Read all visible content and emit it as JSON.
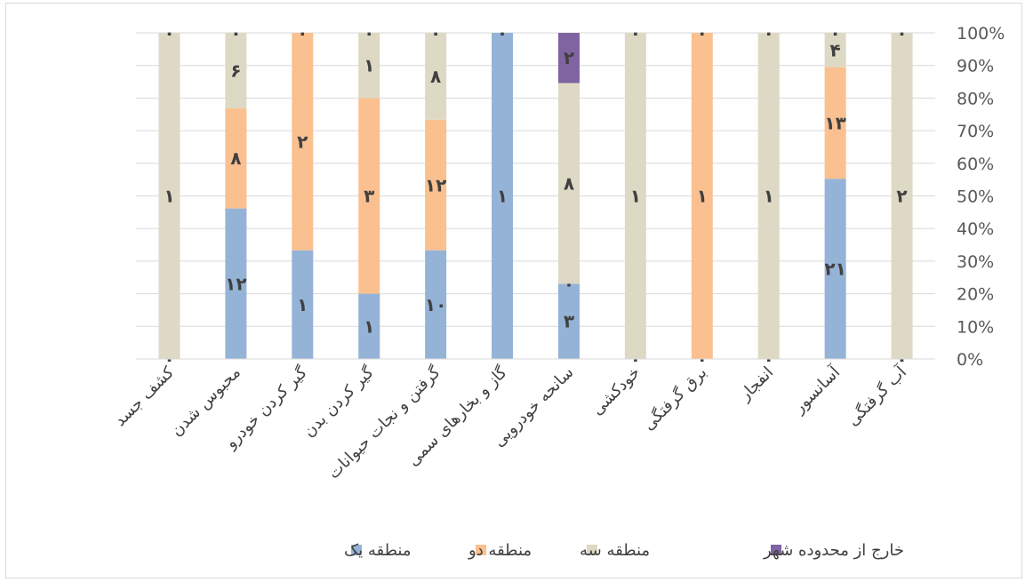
{
  "chart_data": {
    "type": "bar",
    "stacked": "percent",
    "categories": [
      "کشف جسد",
      "محبوس شدن",
      "گیر کردن خودرو",
      "گیر کردن بدن",
      "گرفتن و نجات حیوانات",
      "گاز و بخارهای سمی",
      "سانحه خودرویی",
      "خودکشی",
      "برق گرفتگی",
      "انفجار",
      "آسانسور",
      "آب گرفتگی"
    ],
    "series": [
      {
        "name": "منطقه یک",
        "color": "#95b3d7",
        "values": [
          0,
          12,
          1,
          1,
          10,
          1,
          3,
          0,
          0,
          0,
          21,
          0
        ],
        "labels": [
          "۰",
          "۱۲",
          "۱",
          "۱",
          "۱۰",
          "۱",
          "۳",
          "۰",
          "۰",
          "۰",
          "۲۱",
          "۰"
        ]
      },
      {
        "name": "منطقه دو",
        "color": "#fac090",
        "values": [
          0,
          8,
          2,
          3,
          12,
          0,
          0,
          0,
          1,
          0,
          13,
          0
        ],
        "labels": [
          "",
          "۸",
          "۲",
          "۳",
          "۱۲",
          "",
          "۰",
          "",
          "۱",
          "",
          "۱۳",
          "۰"
        ]
      },
      {
        "name": "منطقه سه",
        "color": "#ddd9c4",
        "values": [
          1,
          6,
          0,
          1,
          8,
          0,
          8,
          1,
          0,
          1,
          4,
          2
        ],
        "labels": [
          "۱",
          "۶",
          "۰",
          "۱",
          "۸",
          "۰",
          "۸",
          "۱",
          "۰",
          "۱",
          "۴",
          "۲"
        ]
      },
      {
        "name": "خارج از محدوده شهر",
        "color": "#8064a2",
        "values": [
          0,
          0,
          0,
          0,
          0,
          0,
          2,
          0,
          0,
          0,
          0,
          0
        ],
        "labels": [
          "۰",
          "۰",
          "",
          "۰",
          "۰",
          "",
          "۲",
          "۰",
          "",
          "۰",
          "۰",
          "۰"
        ]
      }
    ],
    "ylim": [
      0,
      100
    ],
    "yticks": [
      "0%",
      "10%",
      "20%",
      "30%",
      "40%",
      "50%",
      "60%",
      "70%",
      "80%",
      "90%",
      "100%"
    ],
    "y_axis_position": "right",
    "gridlines": true,
    "legend_position": "bottom"
  }
}
